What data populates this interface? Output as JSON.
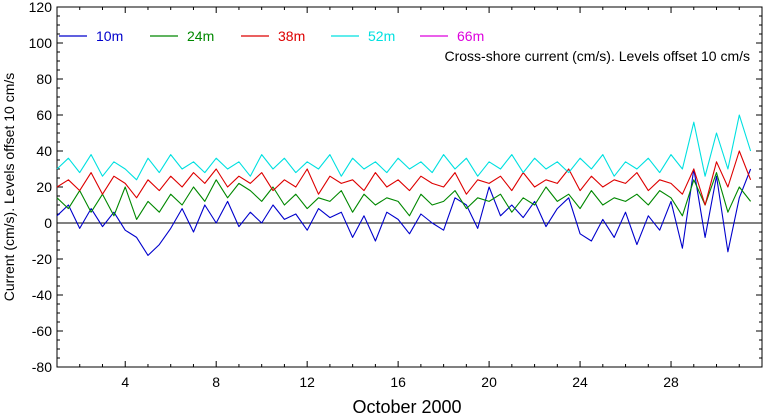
{
  "chart_data": {
    "type": "line",
    "xlabel": "October 2000",
    "ylabel": "Current (cm/s). Levels offset 10 cm/s",
    "annotation": "Cross-shore current (cm/s). Levels offset 10 cm/s",
    "xlim": [
      1,
      32
    ],
    "ylim": [
      -80,
      120
    ],
    "xticks": [
      4,
      8,
      12,
      16,
      20,
      24,
      28
    ],
    "yticks": [
      -80,
      -60,
      -40,
      -20,
      0,
      20,
      40,
      60,
      80,
      100,
      120
    ],
    "zero_line": 0,
    "grid": false,
    "legend_position": "top-left",
    "series": [
      {
        "name": "10m",
        "color": "#0000cc",
        "offset": 0,
        "x": [
          1,
          1.5,
          2,
          2.5,
          3,
          3.5,
          4,
          4.5,
          5,
          5.5,
          6,
          6.5,
          7,
          7.5,
          8,
          8.5,
          9,
          9.5,
          10,
          10.5,
          11,
          11.5,
          12,
          12.5,
          13,
          13.5,
          14,
          14.5,
          15,
          15.5,
          16,
          16.5,
          17,
          17.5,
          18,
          18.5,
          19,
          19.5,
          20,
          20.5,
          21,
          21.5,
          22,
          22.5,
          23,
          23.5,
          24,
          24.5,
          25,
          25.5,
          26,
          26.5,
          27,
          27.5,
          28,
          28.5,
          29,
          29.5,
          30,
          30.5,
          31,
          31.5
        ],
        "y": [
          4,
          10,
          -3,
          8,
          -2,
          6,
          -4,
          -8,
          -18,
          -12,
          -3,
          8,
          -5,
          10,
          0,
          12,
          -2,
          6,
          0,
          10,
          2,
          5,
          -4,
          8,
          3,
          6,
          -8,
          4,
          -10,
          6,
          2,
          -6,
          5,
          0,
          -4,
          14,
          10,
          -3,
          20,
          4,
          10,
          3,
          12,
          -2,
          8,
          14,
          -6,
          -10,
          2,
          -8,
          6,
          -12,
          4,
          -4,
          12,
          -14,
          30,
          -8,
          26,
          -16,
          14,
          30
        ]
      },
      {
        "name": "24m",
        "color": "#008800",
        "offset": 10,
        "x": [
          1,
          1.5,
          2,
          2.5,
          3,
          3.5,
          4,
          4.5,
          5,
          5.5,
          6,
          6.5,
          7,
          7.5,
          8,
          8.5,
          9,
          9.5,
          10,
          10.5,
          11,
          11.5,
          12,
          12.5,
          13,
          13.5,
          14,
          14.5,
          15,
          15.5,
          16,
          16.5,
          17,
          17.5,
          18,
          18.5,
          19,
          19.5,
          20,
          20.5,
          21,
          21.5,
          22,
          22.5,
          23,
          23.5,
          24,
          24.5,
          25,
          25.5,
          26,
          26.5,
          27,
          27.5,
          28,
          28.5,
          29,
          29.5,
          30,
          30.5,
          31,
          31.5
        ],
        "y": [
          14,
          8,
          18,
          6,
          16,
          4,
          20,
          2,
          12,
          6,
          16,
          10,
          20,
          12,
          24,
          14,
          22,
          18,
          12,
          20,
          10,
          16,
          8,
          14,
          12,
          18,
          6,
          16,
          10,
          14,
          12,
          4,
          16,
          10,
          12,
          18,
          8,
          14,
          12,
          16,
          6,
          14,
          10,
          20,
          12,
          16,
          8,
          18,
          10,
          14,
          12,
          16,
          10,
          18,
          14,
          4,
          24,
          10,
          28,
          6,
          20,
          12
        ]
      },
      {
        "name": "38m",
        "color": "#dd0000",
        "offset": 20,
        "x": [
          1,
          1.5,
          2,
          2.5,
          3,
          3.5,
          4,
          4.5,
          5,
          5.5,
          6,
          6.5,
          7,
          7.5,
          8,
          8.5,
          9,
          9.5,
          10,
          10.5,
          11,
          11.5,
          12,
          12.5,
          13,
          13.5,
          14,
          14.5,
          15,
          15.5,
          16,
          16.5,
          17,
          17.5,
          18,
          18.5,
          19,
          19.5,
          20,
          20.5,
          21,
          21.5,
          22,
          22.5,
          23,
          23.5,
          24,
          24.5,
          25,
          25.5,
          26,
          26.5,
          27,
          27.5,
          28,
          28.5,
          29,
          29.5,
          30,
          30.5,
          31,
          31.5
        ],
        "y": [
          20,
          24,
          18,
          28,
          16,
          26,
          22,
          14,
          24,
          18,
          26,
          20,
          28,
          22,
          30,
          20,
          26,
          22,
          28,
          18,
          24,
          20,
          30,
          16,
          26,
          22,
          24,
          18,
          28,
          20,
          24,
          18,
          26,
          22,
          20,
          28,
          16,
          24,
          22,
          26,
          18,
          28,
          20,
          24,
          22,
          30,
          18,
          26,
          20,
          24,
          22,
          28,
          18,
          24,
          22,
          16,
          30,
          10,
          34,
          20,
          40,
          24
        ]
      },
      {
        "name": "52m",
        "color": "#00e0e0",
        "offset": 30,
        "x": [
          1,
          1.5,
          2,
          2.5,
          3,
          3.5,
          4,
          4.5,
          5,
          5.5,
          6,
          6.5,
          7,
          7.5,
          8,
          8.5,
          9,
          9.5,
          10,
          10.5,
          11,
          11.5,
          12,
          12.5,
          13,
          13.5,
          14,
          14.5,
          15,
          15.5,
          16,
          16.5,
          17,
          17.5,
          18,
          18.5,
          19,
          19.5,
          20,
          20.5,
          21,
          21.5,
          22,
          22.5,
          23,
          23.5,
          24,
          24.5,
          25,
          25.5,
          26,
          26.5,
          27,
          27.5,
          28,
          28.5,
          29,
          29.5,
          30,
          30.5,
          31,
          31.5
        ],
        "y": [
          30,
          36,
          28,
          38,
          26,
          34,
          30,
          24,
          36,
          28,
          38,
          30,
          34,
          28,
          36,
          30,
          34,
          26,
          38,
          30,
          36,
          28,
          34,
          30,
          38,
          26,
          36,
          30,
          34,
          28,
          36,
          30,
          34,
          28,
          38,
          30,
          36,
          26,
          34,
          30,
          38,
          28,
          36,
          30,
          34,
          28,
          36,
          30,
          38,
          26,
          34,
          30,
          36,
          28,
          38,
          30,
          56,
          26,
          50,
          30,
          60,
          40
        ]
      },
      {
        "name": "66m",
        "color": "#dd00dd",
        "offset": 40,
        "x": [],
        "y": []
      }
    ]
  }
}
